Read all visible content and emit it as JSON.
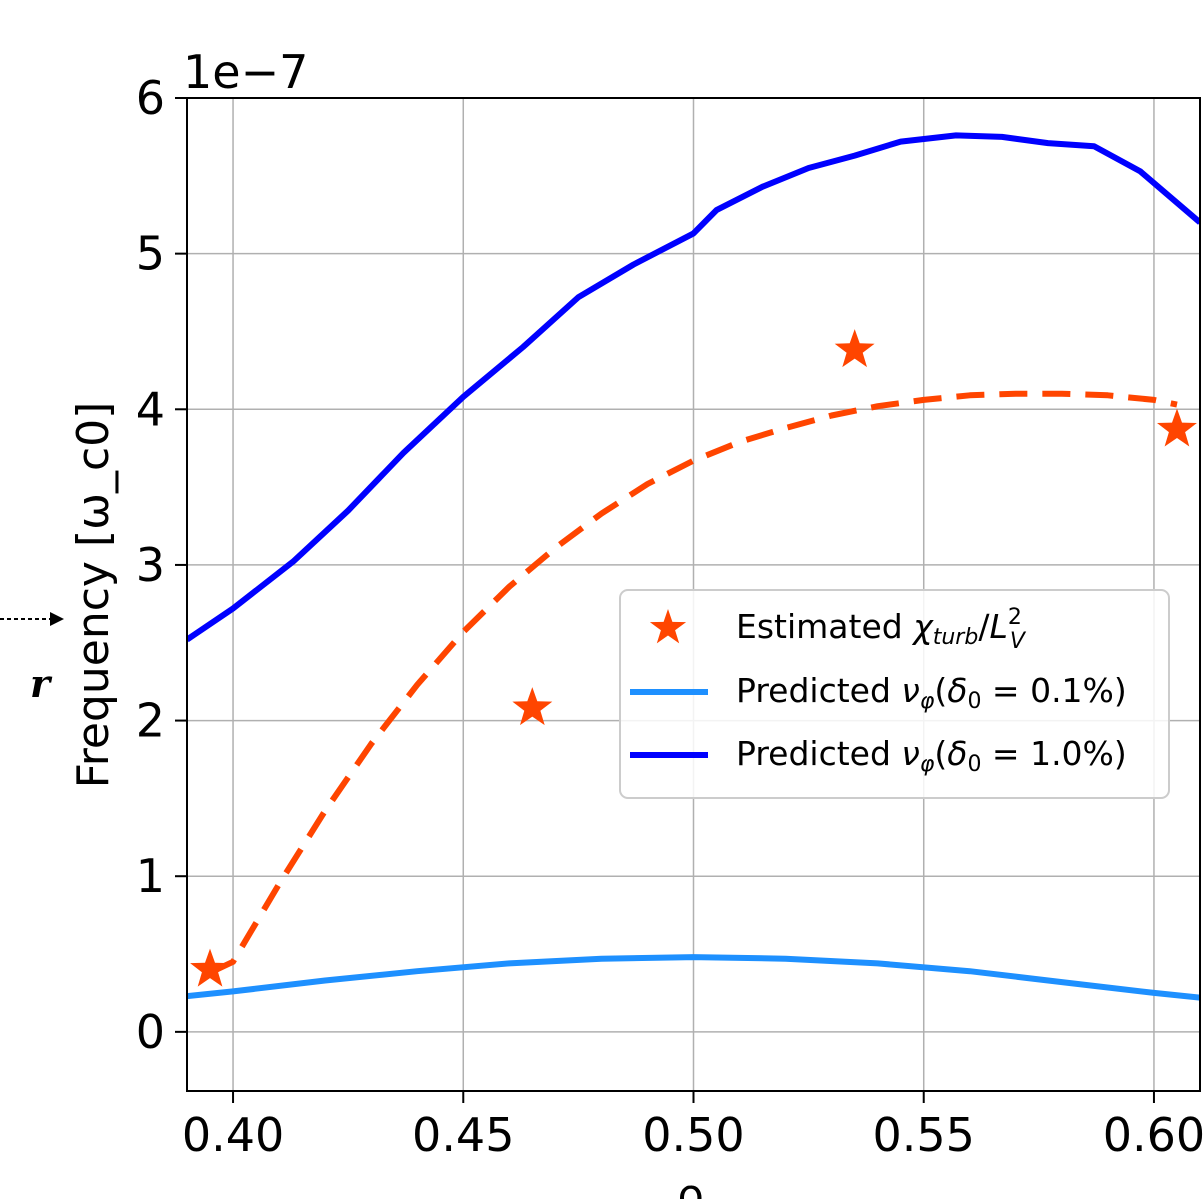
{
  "chart_data": {
    "type": "line",
    "xlabel": "ρ",
    "ylabel": "Frequency [ω_c0]",
    "y_offset_label": "1e−7",
    "side_label": "r",
    "xlim": [
      0.39,
      0.61
    ],
    "ylim": [
      -0.38,
      6.0
    ],
    "y_scale": 1e-07,
    "x_ticks": [
      0.4,
      0.45,
      0.5,
      0.55,
      0.6
    ],
    "x_tick_labels": [
      "0.40",
      "0.45",
      "0.50",
      "0.55",
      "0.60"
    ],
    "y_ticks": [
      0,
      1,
      2,
      3,
      4,
      5,
      6
    ],
    "y_tick_labels": [
      "0",
      "1",
      "2",
      "3",
      "4",
      "5",
      "6"
    ],
    "grid": true,
    "legend_position": "center-right",
    "series": [
      {
        "name": "Estimated χturb/L_V^2",
        "kind": "scatter",
        "marker": "star",
        "color": "#ff4500",
        "x": [
          0.395,
          0.465,
          0.535,
          0.605
        ],
        "y": [
          0.4,
          2.08,
          4.38,
          3.87
        ]
      },
      {
        "name": "Predicted νφ(δ0 = 0.1%)",
        "kind": "line",
        "color": "#1e90ff",
        "x": [
          0.39,
          0.4,
          0.42,
          0.44,
          0.46,
          0.48,
          0.5,
          0.52,
          0.54,
          0.56,
          0.58,
          0.6,
          0.61
        ],
        "y": [
          0.23,
          0.26,
          0.33,
          0.39,
          0.44,
          0.47,
          0.48,
          0.47,
          0.44,
          0.39,
          0.32,
          0.25,
          0.22
        ]
      },
      {
        "name": "Predicted νφ(δ0 = 1.0%)",
        "kind": "line",
        "color": "#0000ff",
        "x": [
          0.39,
          0.4,
          0.413,
          0.425,
          0.437,
          0.45,
          0.463,
          0.475,
          0.487,
          0.5,
          0.505,
          0.515,
          0.525,
          0.535,
          0.545,
          0.557,
          0.567,
          0.577,
          0.587,
          0.597,
          0.61
        ],
        "y": [
          2.52,
          2.72,
          3.02,
          3.35,
          3.72,
          4.08,
          4.4,
          4.72,
          4.93,
          5.13,
          5.28,
          5.43,
          5.55,
          5.63,
          5.72,
          5.76,
          5.75,
          5.71,
          5.69,
          5.53,
          5.2
        ]
      },
      {
        "kind": "fit",
        "style": "dashed",
        "color": "#ff4500",
        "x": [
          0.395,
          0.4,
          0.41,
          0.42,
          0.43,
          0.44,
          0.45,
          0.46,
          0.47,
          0.48,
          0.49,
          0.5,
          0.51,
          0.52,
          0.53,
          0.54,
          0.55,
          0.56,
          0.57,
          0.58,
          0.59,
          0.6,
          0.605
        ],
        "y": [
          0.38,
          0.45,
          0.95,
          1.42,
          1.85,
          2.23,
          2.57,
          2.86,
          3.11,
          3.33,
          3.52,
          3.67,
          3.79,
          3.88,
          3.96,
          4.02,
          4.06,
          4.09,
          4.1,
          4.1,
          4.09,
          4.06,
          4.03
        ]
      }
    ]
  }
}
